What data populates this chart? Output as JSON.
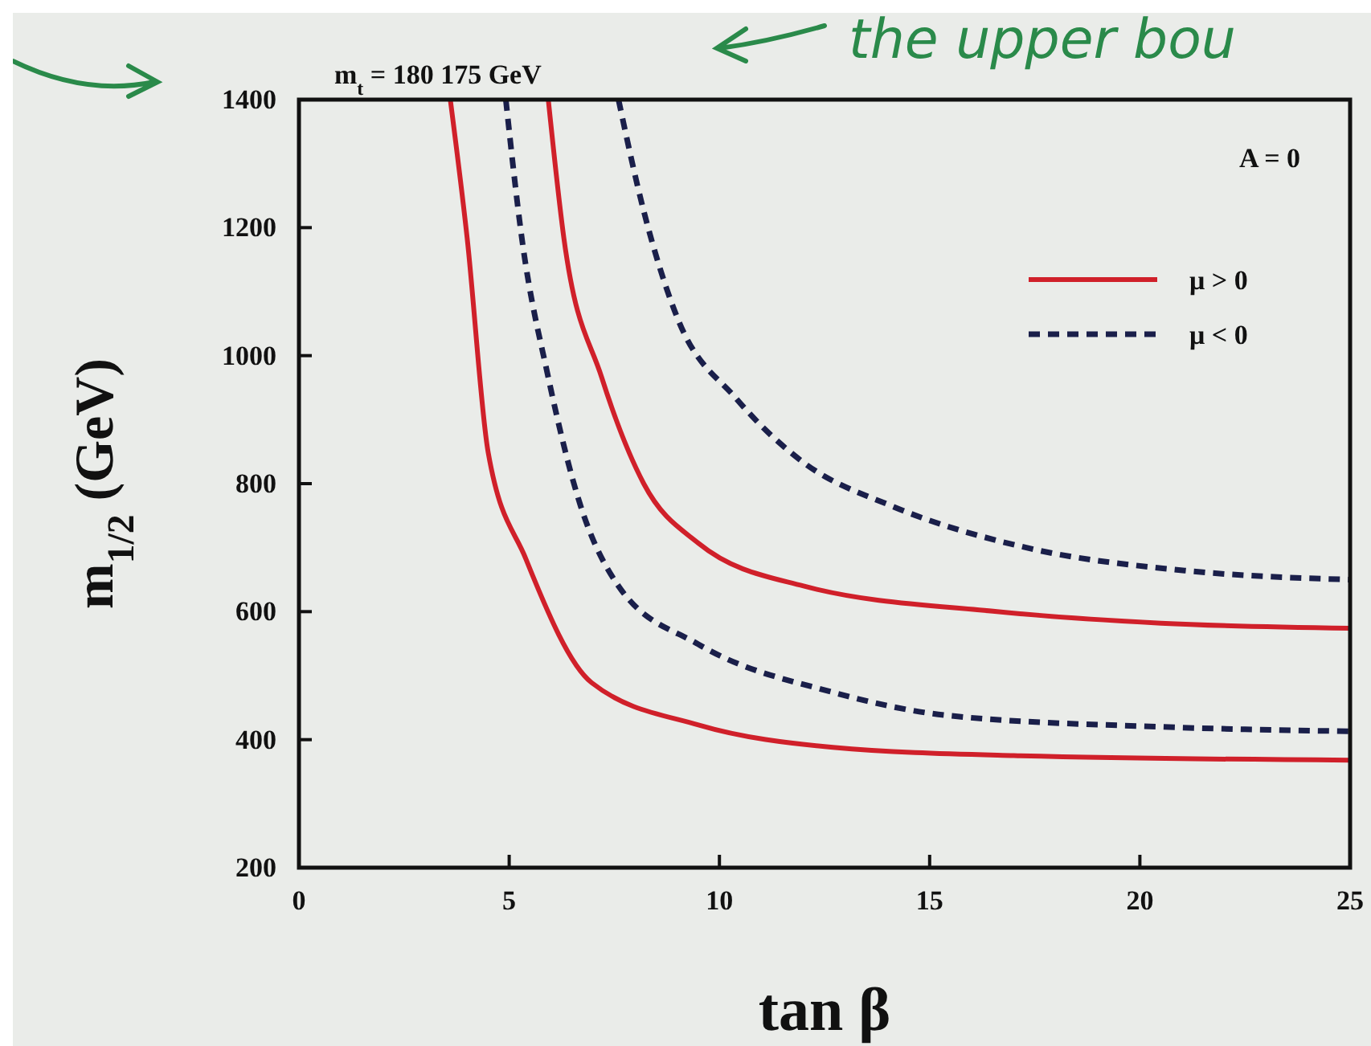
{
  "chart_data": {
    "type": "line",
    "title": "m$_{t}$ = 180 175 GeV",
    "xlabel": "tan β",
    "ylabel": "m$_{1/2}$  (GeV)",
    "xlim": [
      0,
      25
    ],
    "ylim": [
      200,
      1400
    ],
    "xticks": [
      0,
      5,
      10,
      15,
      20,
      25
    ],
    "yticks": [
      200,
      400,
      600,
      800,
      1000,
      1200,
      1400
    ],
    "grid": false,
    "legend": "top right",
    "annotations": [
      "A = 0",
      "the upper bou"
    ],
    "series": [
      {
        "name": "μ > 0",
        "color": "#d0202a",
        "line_style": "solid",
        "x": [
          3.6,
          4.0,
          4.5,
          5.4,
          6.96,
          9.5,
          12.7,
          17,
          25
        ],
        "values": [
          1400,
          1184,
          849,
          682,
          489,
          423,
          388,
          375,
          368
        ]
      },
      {
        "name": "μ < 0",
        "color": "#1a1f4a",
        "line_style": "dashed",
        "x": [
          4.92,
          5.3,
          5.93,
          6.7,
          7.6,
          9.5,
          12.7,
          15.4,
          20.5,
          25
        ],
        "values": [
          1400,
          1184,
          966,
          765,
          640,
          549,
          474,
          438,
          420,
          413
        ]
      },
      {
        "color": "#d0202a",
        "line_style": "solid",
        "x": [
          5.93,
          6.3,
          7.2,
          8.2,
          9.5,
          12.0,
          16.6,
          20.5,
          25
        ],
        "values": [
          1400,
          1184,
          966,
          800,
          707,
          640,
          600,
          582,
          574
        ]
      },
      {
        "color": "#1a1f4a",
        "line_style": "dashed",
        "x": [
          7.6,
          8.2,
          9.0,
          10.4,
          12.0,
          14.1,
          17.3,
          21.1,
          25
        ],
        "values": [
          1400,
          1226,
          1059,
          933,
          833,
          765,
          700,
          664,
          650
        ]
      }
    ]
  }
}
